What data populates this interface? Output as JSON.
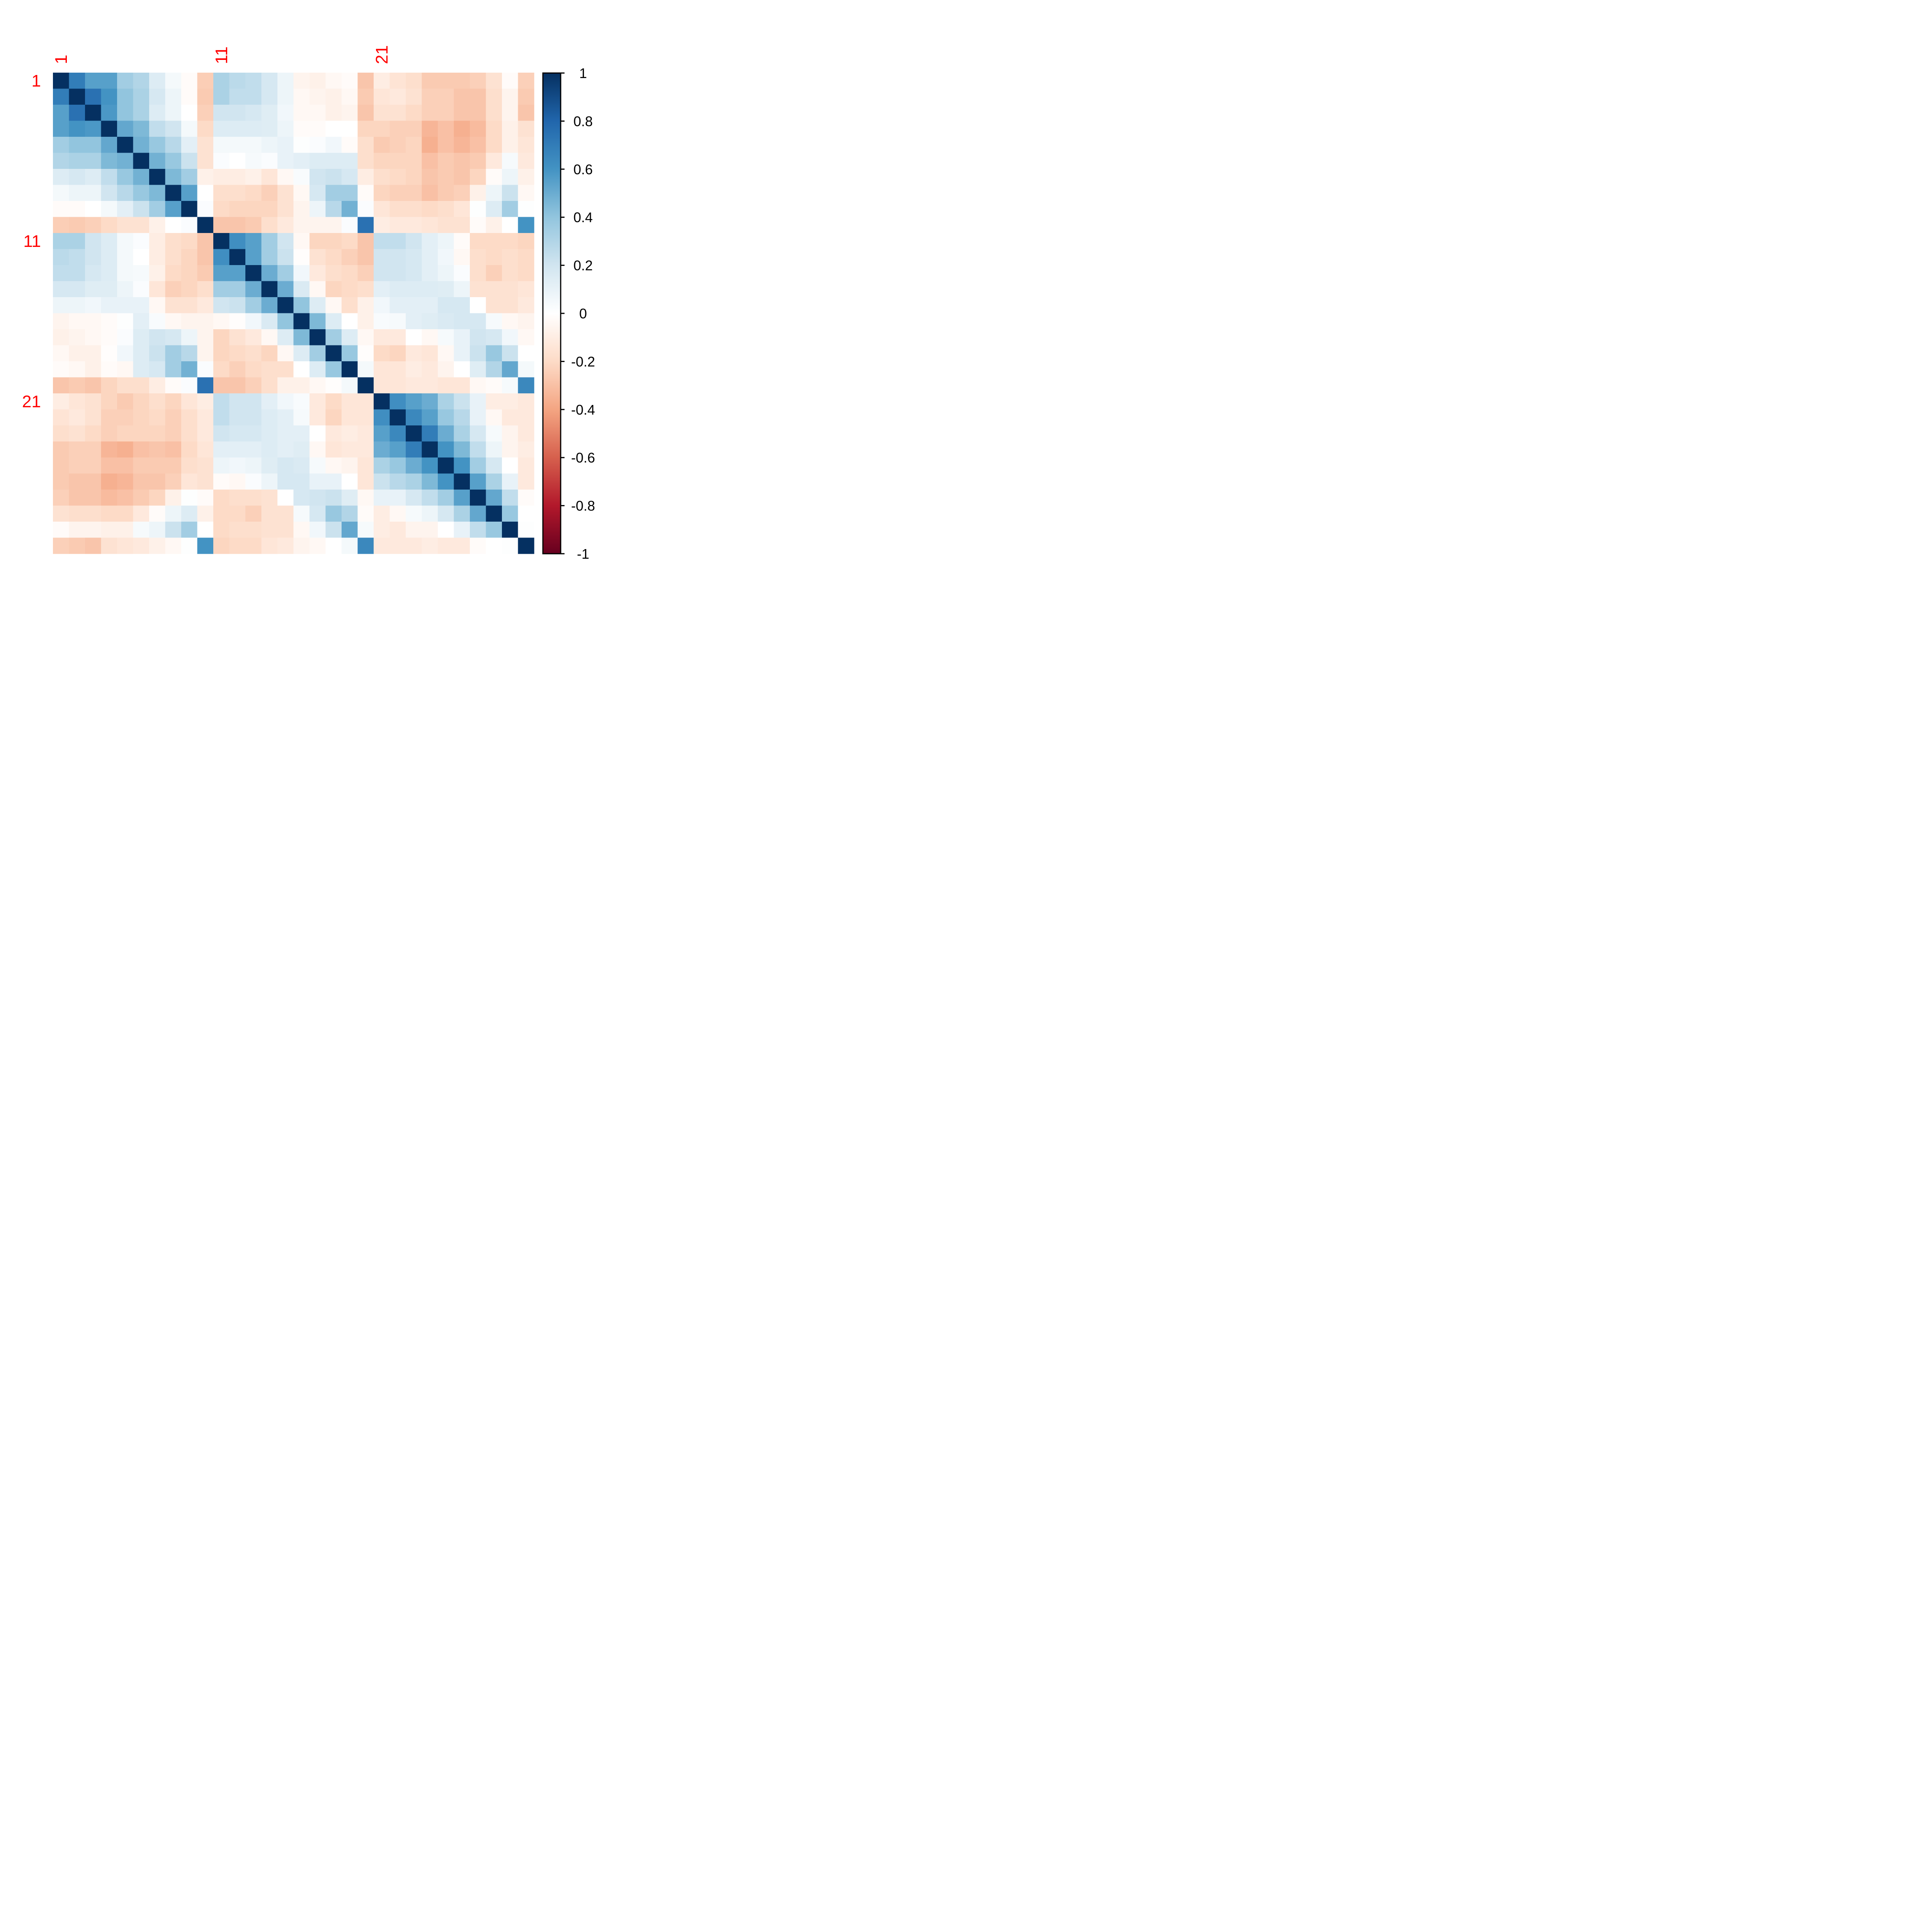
{
  "chart_data": {
    "type": "heatmap",
    "title": "",
    "xlabel": "",
    "ylabel": "",
    "size": 30,
    "row_labels": [
      "1",
      "11",
      "21"
    ],
    "col_labels": [
      "1",
      "11",
      "21"
    ],
    "label_positions": [
      1,
      11,
      21
    ],
    "label_color": "#ff0000",
    "colorbar": {
      "range": [
        -1,
        1
      ],
      "ticks": [
        "1",
        "0.8",
        "0.6",
        "0.4",
        "0.2",
        "0",
        "-0.2",
        "-0.4",
        "-0.6",
        "-0.8",
        "-1"
      ],
      "tick_values": [
        1,
        0.8,
        0.6,
        0.4,
        0.2,
        0,
        -0.2,
        -0.4,
        -0.6,
        -0.8,
        -1
      ],
      "colors_low_to_high": [
        "#67001F",
        "#B2182B",
        "#D6604D",
        "#F4A582",
        "#FDDBC7",
        "#FFFFFF",
        "#D1E5F0",
        "#92C5DE",
        "#4393C3",
        "#2166AC",
        "#053061"
      ]
    },
    "values": [
      [
        1.0,
        0.7,
        0.55,
        0.55,
        0.35,
        0.3,
        0.15,
        0.05,
        -0.02,
        -0.25,
        0.32,
        0.27,
        0.25,
        0.18,
        0.08,
        -0.06,
        -0.08,
        -0.04,
        -0.02,
        -0.28,
        -0.1,
        -0.15,
        -0.18,
        -0.26,
        -0.26,
        -0.26,
        -0.24,
        -0.16,
        -0.02,
        -0.24
      ],
      [
        0.7,
        1.0,
        0.75,
        0.6,
        0.4,
        0.32,
        0.18,
        0.08,
        -0.02,
        -0.26,
        0.32,
        0.25,
        0.25,
        0.18,
        0.08,
        -0.04,
        -0.06,
        -0.08,
        -0.04,
        -0.26,
        -0.14,
        -0.12,
        -0.16,
        -0.24,
        -0.24,
        -0.28,
        -0.28,
        -0.18,
        -0.06,
        -0.26
      ],
      [
        0.55,
        0.75,
        1.0,
        0.58,
        0.4,
        0.32,
        0.15,
        0.08,
        0.0,
        -0.24,
        0.2,
        0.2,
        0.18,
        0.14,
        0.06,
        -0.04,
        -0.04,
        -0.08,
        -0.06,
        -0.28,
        -0.16,
        -0.16,
        -0.2,
        -0.24,
        -0.24,
        -0.28,
        -0.28,
        -0.18,
        -0.06,
        -0.28
      ],
      [
        0.55,
        0.6,
        0.58,
        1.0,
        0.52,
        0.45,
        0.25,
        0.2,
        0.05,
        -0.2,
        0.15,
        0.15,
        0.15,
        0.14,
        0.08,
        -0.02,
        -0.02,
        0.0,
        0.0,
        -0.22,
        -0.22,
        -0.24,
        -0.24,
        -0.34,
        -0.3,
        -0.36,
        -0.32,
        -0.2,
        -0.08,
        -0.16
      ],
      [
        0.35,
        0.4,
        0.4,
        0.52,
        1.0,
        0.48,
        0.38,
        0.28,
        0.12,
        -0.16,
        0.05,
        0.05,
        0.05,
        0.08,
        0.1,
        0.01,
        0.02,
        0.06,
        -0.02,
        -0.18,
        -0.26,
        -0.24,
        -0.22,
        -0.36,
        -0.3,
        -0.34,
        -0.3,
        -0.2,
        -0.08,
        -0.14
      ],
      [
        0.3,
        0.32,
        0.32,
        0.45,
        0.48,
        1.0,
        0.48,
        0.38,
        0.22,
        -0.16,
        0.02,
        0.0,
        0.04,
        0.02,
        0.1,
        0.12,
        0.15,
        0.15,
        0.15,
        -0.18,
        -0.22,
        -0.22,
        -0.22,
        -0.3,
        -0.26,
        -0.28,
        -0.26,
        -0.12,
        0.04,
        -0.12
      ],
      [
        0.15,
        0.18,
        0.15,
        0.25,
        0.38,
        0.48,
        1.0,
        0.45,
        0.35,
        -0.08,
        -0.1,
        -0.1,
        -0.08,
        -0.14,
        -0.04,
        0.03,
        0.2,
        0.22,
        0.18,
        -0.1,
        -0.18,
        -0.2,
        -0.22,
        -0.28,
        -0.26,
        -0.28,
        -0.22,
        -0.02,
        0.08,
        -0.08
      ],
      [
        0.05,
        0.08,
        0.08,
        0.2,
        0.28,
        0.38,
        0.45,
        1.0,
        0.55,
        0.0,
        -0.18,
        -0.18,
        -0.2,
        -0.24,
        -0.16,
        -0.04,
        0.18,
        0.35,
        0.35,
        -0.02,
        -0.22,
        -0.24,
        -0.24,
        -0.3,
        -0.26,
        -0.24,
        -0.08,
        0.08,
        0.22,
        -0.04
      ],
      [
        -0.02,
        -0.02,
        0.0,
        0.05,
        0.12,
        0.22,
        0.35,
        0.55,
        1.0,
        0.02,
        -0.2,
        -0.22,
        -0.22,
        -0.22,
        -0.16,
        -0.06,
        0.08,
        0.28,
        0.48,
        0.02,
        -0.14,
        -0.18,
        -0.18,
        -0.2,
        -0.18,
        -0.14,
        0.01,
        0.15,
        0.35,
        0.01
      ],
      [
        -0.25,
        -0.26,
        -0.24,
        -0.2,
        -0.16,
        -0.16,
        -0.08,
        0.0,
        0.02,
        1.0,
        -0.28,
        -0.28,
        -0.26,
        -0.18,
        -0.12,
        -0.06,
        -0.06,
        -0.06,
        0.02,
        0.75,
        -0.1,
        -0.12,
        -0.12,
        -0.14,
        -0.16,
        -0.16,
        -0.02,
        -0.08,
        0.0,
        0.6
      ],
      [
        0.32,
        0.32,
        0.2,
        0.15,
        0.05,
        0.02,
        -0.1,
        -0.18,
        -0.2,
        -0.28,
        1.0,
        0.62,
        0.55,
        0.35,
        0.2,
        -0.04,
        -0.22,
        -0.22,
        -0.2,
        -0.28,
        0.25,
        0.25,
        0.2,
        0.12,
        0.08,
        -0.02,
        -0.2,
        -0.2,
        -0.2,
        -0.22
      ],
      [
        0.27,
        0.25,
        0.2,
        0.15,
        0.05,
        0.0,
        -0.1,
        -0.18,
        -0.22,
        -0.28,
        0.62,
        1.0,
        0.55,
        0.35,
        0.22,
        -0.01,
        -0.16,
        -0.2,
        -0.24,
        -0.28,
        0.2,
        0.2,
        0.18,
        0.12,
        0.06,
        -0.04,
        -0.18,
        -0.2,
        -0.18,
        -0.2
      ],
      [
        0.25,
        0.25,
        0.18,
        0.15,
        0.05,
        0.04,
        -0.08,
        -0.2,
        -0.22,
        -0.26,
        0.55,
        0.55,
        1.0,
        0.5,
        0.35,
        0.06,
        -0.12,
        -0.18,
        -0.2,
        -0.24,
        0.2,
        0.2,
        0.18,
        0.12,
        0.08,
        0.02,
        -0.18,
        -0.24,
        -0.18,
        -0.2
      ],
      [
        0.18,
        0.18,
        0.14,
        0.14,
        0.08,
        0.02,
        -0.14,
        -0.24,
        -0.22,
        -0.18,
        0.35,
        0.35,
        0.5,
        1.0,
        0.5,
        0.16,
        -0.04,
        -0.22,
        -0.2,
        -0.18,
        0.12,
        0.15,
        0.15,
        0.15,
        0.14,
        0.08,
        -0.16,
        -0.16,
        -0.16,
        -0.14
      ],
      [
        0.08,
        0.08,
        0.06,
        0.1,
        0.1,
        0.1,
        -0.04,
        -0.16,
        -0.16,
        -0.12,
        0.2,
        0.22,
        0.35,
        0.5,
        1.0,
        0.4,
        0.15,
        -0.04,
        -0.18,
        -0.08,
        0.06,
        0.12,
        0.12,
        0.12,
        0.18,
        0.18,
        0.0,
        -0.16,
        -0.16,
        -0.12
      ],
      [
        -0.06,
        -0.04,
        -0.04,
        -0.02,
        0.01,
        0.12,
        0.03,
        -0.04,
        -0.06,
        -0.06,
        -0.04,
        -0.01,
        0.06,
        0.16,
        0.4,
        1.0,
        0.45,
        0.15,
        0.0,
        -0.08,
        0.03,
        0.04,
        0.12,
        0.14,
        0.16,
        0.18,
        0.18,
        0.04,
        -0.04,
        -0.06
      ],
      [
        -0.08,
        -0.06,
        -0.04,
        -0.02,
        0.02,
        0.15,
        0.2,
        0.18,
        0.08,
        -0.06,
        -0.22,
        -0.16,
        -0.12,
        -0.04,
        0.15,
        0.45,
        1.0,
        0.35,
        0.15,
        -0.04,
        -0.12,
        -0.12,
        0.0,
        -0.04,
        0.04,
        0.1,
        0.2,
        0.18,
        0.06,
        -0.04
      ],
      [
        -0.04,
        -0.08,
        -0.08,
        -0.01,
        0.06,
        0.15,
        0.22,
        0.35,
        0.28,
        -0.06,
        -0.22,
        -0.2,
        -0.18,
        -0.22,
        -0.04,
        0.15,
        0.35,
        1.0,
        0.38,
        -0.01,
        -0.2,
        -0.22,
        -0.12,
        -0.14,
        -0.04,
        0.1,
        0.22,
        0.38,
        0.22,
        0.0
      ],
      [
        -0.02,
        -0.04,
        -0.08,
        -0.02,
        -0.04,
        0.15,
        0.18,
        0.35,
        0.48,
        0.02,
        -0.2,
        -0.24,
        -0.2,
        -0.18,
        -0.18,
        0.0,
        0.15,
        0.38,
        1.0,
        0.05,
        -0.14,
        -0.14,
        -0.1,
        -0.12,
        -0.06,
        0.0,
        0.14,
        0.3,
        0.52,
        0.05
      ],
      [
        -0.28,
        -0.26,
        -0.28,
        -0.22,
        -0.18,
        -0.18,
        -0.1,
        -0.02,
        0.02,
        0.75,
        -0.28,
        -0.28,
        -0.24,
        -0.18,
        -0.08,
        -0.08,
        -0.04,
        -0.01,
        0.05,
        1.0,
        -0.14,
        -0.14,
        -0.12,
        -0.12,
        -0.14,
        -0.14,
        -0.04,
        -0.02,
        0.04,
        0.65
      ],
      [
        -0.1,
        -0.14,
        -0.16,
        -0.22,
        -0.26,
        -0.22,
        -0.18,
        -0.22,
        -0.14,
        -0.1,
        0.25,
        0.2,
        0.2,
        0.12,
        0.06,
        0.03,
        -0.12,
        -0.2,
        -0.14,
        -0.14,
        1.0,
        0.62,
        0.55,
        0.5,
        0.32,
        0.22,
        0.1,
        -0.1,
        -0.1,
        -0.12
      ],
      [
        -0.15,
        -0.12,
        -0.16,
        -0.24,
        -0.24,
        -0.22,
        -0.2,
        -0.24,
        -0.18,
        -0.12,
        0.25,
        0.2,
        0.2,
        0.15,
        0.12,
        0.04,
        -0.12,
        -0.22,
        -0.14,
        -0.14,
        0.62,
        1.0,
        0.65,
        0.55,
        0.38,
        0.28,
        0.1,
        -0.04,
        -0.12,
        -0.12
      ],
      [
        -0.18,
        -0.16,
        -0.2,
        -0.24,
        -0.22,
        -0.22,
        -0.22,
        -0.24,
        -0.18,
        -0.12,
        0.2,
        0.18,
        0.18,
        0.15,
        0.12,
        0.12,
        0.0,
        -0.12,
        -0.1,
        -0.12,
        0.55,
        0.65,
        1.0,
        0.7,
        0.5,
        0.32,
        0.18,
        0.04,
        -0.06,
        -0.12
      ],
      [
        -0.26,
        -0.24,
        -0.24,
        -0.34,
        -0.36,
        -0.3,
        -0.28,
        -0.3,
        -0.2,
        -0.14,
        0.12,
        0.12,
        0.12,
        0.15,
        0.12,
        0.14,
        -0.04,
        -0.14,
        -0.12,
        -0.12,
        0.5,
        0.55,
        0.7,
        1.0,
        0.6,
        0.45,
        0.25,
        0.08,
        -0.06,
        -0.1
      ],
      [
        -0.26,
        -0.24,
        -0.24,
        -0.3,
        -0.3,
        -0.26,
        -0.26,
        -0.26,
        -0.18,
        -0.16,
        0.08,
        0.06,
        0.08,
        0.14,
        0.18,
        0.16,
        0.04,
        -0.04,
        -0.06,
        -0.14,
        0.32,
        0.38,
        0.5,
        0.6,
        1.0,
        0.6,
        0.35,
        0.18,
        0.0,
        -0.12
      ],
      [
        -0.26,
        -0.28,
        -0.28,
        -0.36,
        -0.34,
        -0.28,
        -0.28,
        -0.24,
        -0.14,
        -0.16,
        -0.02,
        -0.04,
        0.02,
        0.08,
        0.18,
        0.18,
        0.1,
        0.1,
        0.0,
        -0.14,
        0.22,
        0.28,
        0.32,
        0.45,
        0.6,
        1.0,
        0.55,
        0.32,
        0.1,
        -0.12
      ],
      [
        -0.24,
        -0.28,
        -0.28,
        -0.32,
        -0.3,
        -0.26,
        -0.22,
        -0.08,
        0.01,
        -0.02,
        -0.2,
        -0.18,
        -0.18,
        -0.16,
        0.0,
        0.18,
        0.2,
        0.22,
        0.14,
        -0.04,
        0.1,
        0.1,
        0.18,
        0.25,
        0.35,
        0.55,
        1.0,
        0.52,
        0.25,
        -0.02
      ],
      [
        -0.16,
        -0.18,
        -0.18,
        -0.2,
        -0.2,
        -0.12,
        -0.02,
        0.08,
        0.15,
        -0.08,
        -0.2,
        -0.2,
        -0.24,
        -0.16,
        -0.16,
        0.04,
        0.18,
        0.38,
        0.3,
        -0.02,
        -0.1,
        -0.04,
        0.04,
        0.08,
        0.18,
        0.32,
        0.52,
        1.0,
        0.38,
        0.0
      ],
      [
        -0.02,
        -0.06,
        -0.06,
        -0.08,
        -0.08,
        0.04,
        0.08,
        0.22,
        0.35,
        0.0,
        -0.2,
        -0.18,
        -0.18,
        -0.16,
        -0.16,
        -0.04,
        0.06,
        0.22,
        0.52,
        0.04,
        -0.1,
        -0.12,
        -0.06,
        -0.06,
        0.0,
        0.1,
        0.25,
        0.38,
        1.0,
        0.01
      ],
      [
        -0.24,
        -0.26,
        -0.28,
        -0.16,
        -0.14,
        -0.12,
        -0.08,
        -0.04,
        0.01,
        0.6,
        -0.22,
        -0.2,
        -0.2,
        -0.14,
        -0.12,
        -0.06,
        -0.04,
        0.0,
        0.05,
        0.65,
        -0.12,
        -0.12,
        -0.12,
        -0.1,
        -0.12,
        -0.12,
        -0.02,
        0.0,
        0.01,
        1.0
      ]
    ]
  }
}
